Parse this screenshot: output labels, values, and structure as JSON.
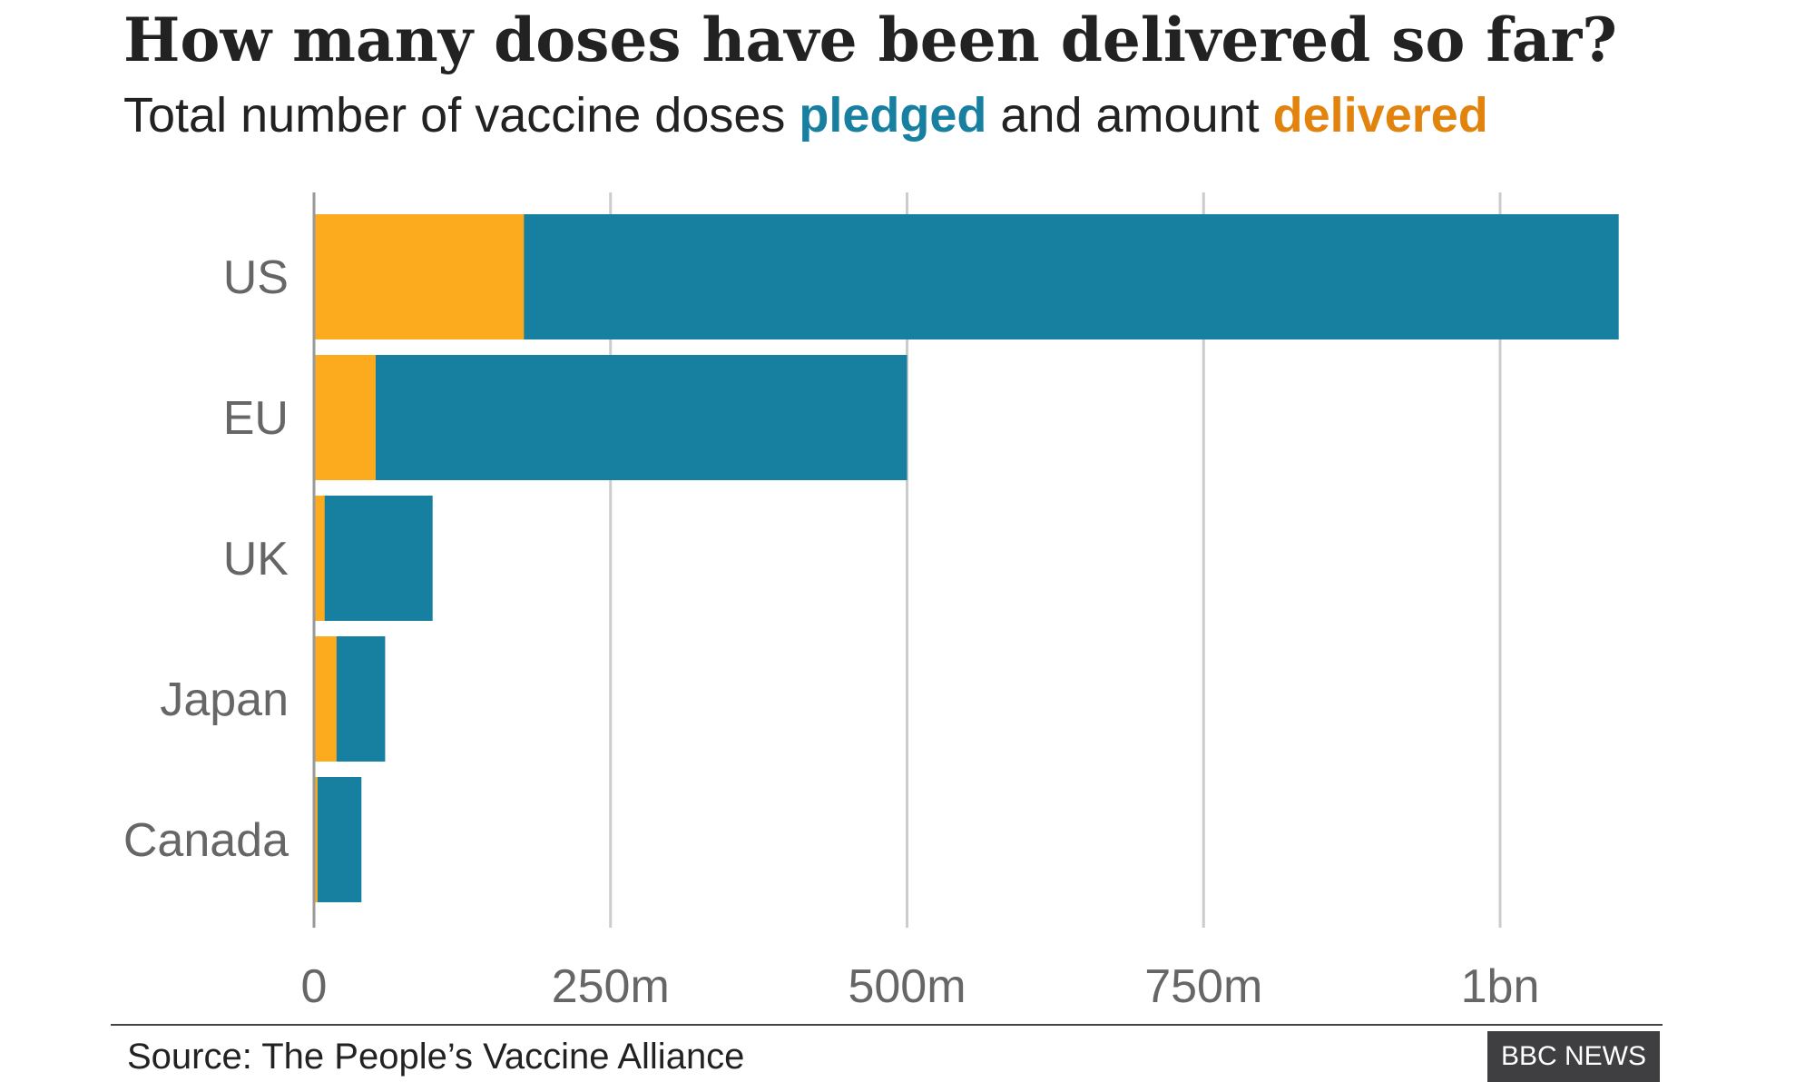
{
  "title": "How many doses have been delivered so far?",
  "subtitle": {
    "prefix": "Total number of vaccine doses ",
    "pledged_word": "pledged",
    "middle": " and amount ",
    "delivered_word": "delivered"
  },
  "colors": {
    "pledged": "#1780a1",
    "delivered": "#fbab1d",
    "delivered_text": "#e2830e"
  },
  "source": "Source: The People’s Vaccine Alliance",
  "brand": "BBC NEWS",
  "chart_data": {
    "type": "bar",
    "orientation": "horizontal",
    "stacked_overlay": true,
    "categories": [
      "US",
      "EU",
      "UK",
      "Japan",
      "Canada"
    ],
    "series": [
      {
        "name": "pledged",
        "values": [
          1100,
          500,
          100,
          60,
          40
        ]
      },
      {
        "name": "delivered",
        "values": [
          177,
          52,
          9,
          19,
          3
        ]
      }
    ],
    "value_unit": "million doses",
    "xlim": [
      0,
      1100
    ],
    "xticks": [
      0,
      250,
      500,
      750,
      1000
    ],
    "xtick_labels": [
      "0",
      "250m",
      "500m",
      "750m",
      "1bn"
    ],
    "grid": true,
    "legend": "none (colour key in subtitle)"
  }
}
